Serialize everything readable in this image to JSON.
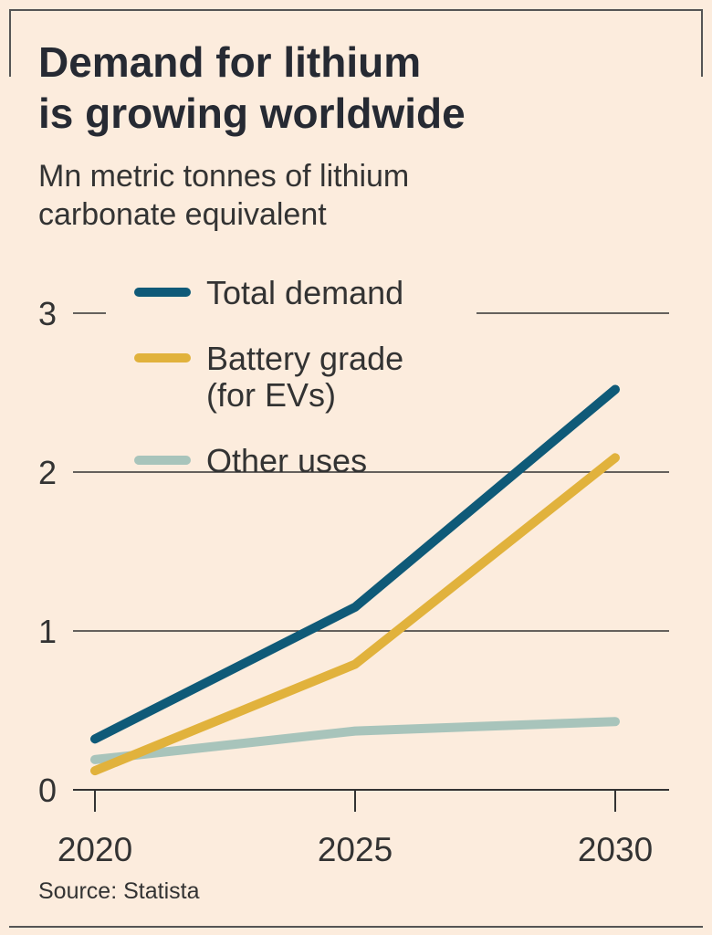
{
  "header": {
    "title_line1": "Demand for lithium",
    "title_line2": "is growing worldwide",
    "subtitle_line1": "Mn metric tonnes of lithium",
    "subtitle_line2": "carbonate equivalent"
  },
  "footer": {
    "source": "Source: Statista"
  },
  "chart_data": {
    "type": "line",
    "title": "Demand for lithium is growing worldwide",
    "subtitle": "Mn metric tonnes of lithium carbonate equivalent",
    "x": [
      2020,
      2025,
      2030
    ],
    "x_ticks": [
      "2020",
      "2025",
      "2030"
    ],
    "y_ticks": [
      "0",
      "1",
      "2",
      "3"
    ],
    "ylim": [
      0,
      3
    ],
    "grid": true,
    "legend_position": "top-left",
    "series": [
      {
        "name": "Total demand",
        "values": [
          0.32,
          1.15,
          2.52
        ],
        "color": "#0f5a78"
      },
      {
        "name": "Battery grade (for EVs)",
        "legend_lines": [
          "Battery grade",
          "(for EVs)"
        ],
        "values": [
          0.12,
          0.79,
          2.09
        ],
        "color": "#e1b23c"
      },
      {
        "name": "Other uses",
        "values": [
          0.19,
          0.37,
          0.43
        ],
        "color": "#a8c4bb"
      }
    ]
  }
}
